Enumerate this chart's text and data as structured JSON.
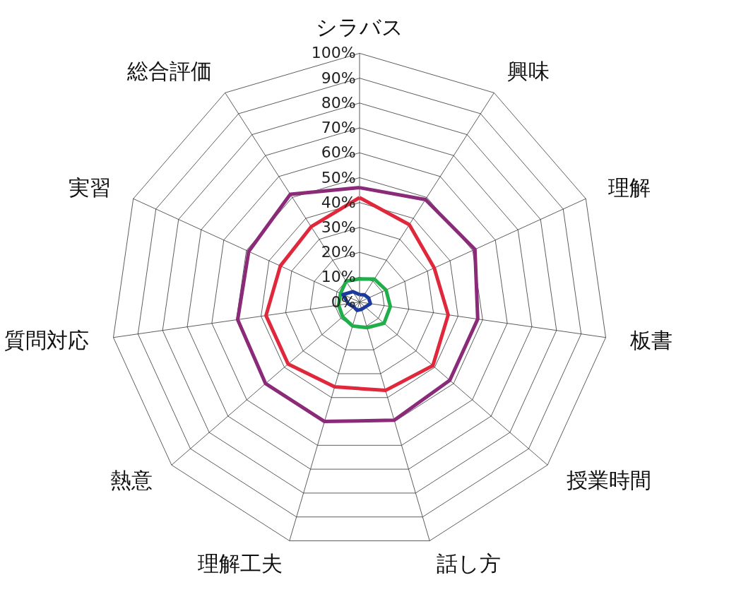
{
  "chart_data": {
    "type": "radar",
    "categories": [
      "シラバス",
      "興味",
      "理解",
      "板書",
      "授業時間",
      "話し方",
      "理解工夫",
      "熱意",
      "質問対応",
      "実習",
      "総合評価"
    ],
    "series": [
      {
        "color": "#8b2a78",
        "values": [
          46,
          49,
          51,
          48,
          48,
          49.5,
          50,
          50,
          49.5,
          49,
          51.5
        ]
      },
      {
        "color": "#e0283c",
        "values": [
          42,
          37,
          33,
          36,
          39,
          37,
          35.5,
          38,
          38,
          35,
          36
        ]
      },
      {
        "color": "#1fae4a",
        "values": [
          9.3,
          11,
          11.7,
          12.5,
          13,
          10.7,
          10,
          9,
          8.5,
          8.4,
          10
        ]
      },
      {
        "color": "#1b3a9e",
        "values": [
          3,
          3.5,
          4,
          4.4,
          3,
          3,
          3.5,
          3,
          4.6,
          7.3,
          5
        ]
      }
    ],
    "ylim": [
      0,
      100
    ],
    "yticks": [
      {
        "value": 0,
        "label": "0%"
      },
      {
        "value": 10,
        "label": "10%"
      },
      {
        "value": 20,
        "label": "20%"
      },
      {
        "value": 30,
        "label": "30%"
      },
      {
        "value": 40,
        "label": "40%"
      },
      {
        "value": 50,
        "label": "50%"
      },
      {
        "value": 60,
        "label": "60%"
      },
      {
        "value": 70,
        "label": "70%"
      },
      {
        "value": 80,
        "label": "80%"
      },
      {
        "value": 90,
        "label": "90%"
      },
      {
        "value": 100,
        "label": "100%"
      }
    ],
    "grid": true
  }
}
